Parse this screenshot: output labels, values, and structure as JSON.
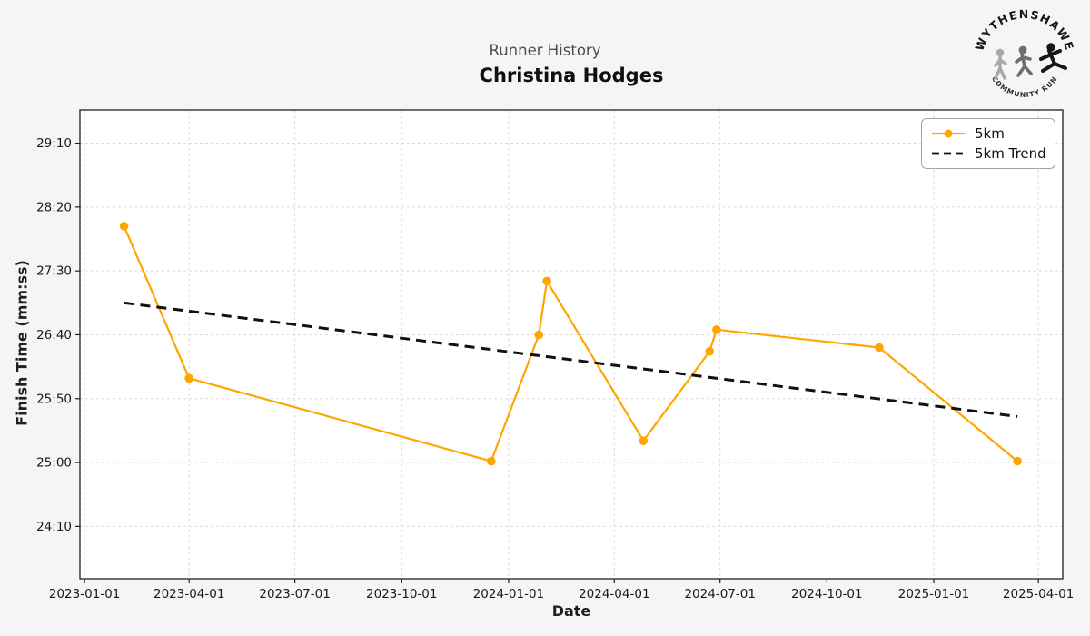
{
  "header": {
    "subtitle": "Runner History",
    "title": "Christina Hodges"
  },
  "logo": {
    "top_text": "WYTHENSHAWE",
    "bottom_text": "COMMUNITY RUN"
  },
  "legend": {
    "position": "upper right"
  },
  "colors": {
    "accent": "#FFA500",
    "trend": "#111111",
    "figure_bg": "#f5f5f5",
    "plot_bg": "#ffffff",
    "grid": "#dbdbdb",
    "spine": "#1f1f1f"
  },
  "chart_data": {
    "type": "line",
    "title": "Christina Hodges",
    "subtitle": "Runner History",
    "xlabel": "Date",
    "ylabel": "Finish Time (mm:ss)",
    "grid": true,
    "legend_position": "upper right",
    "x_ticks": [
      "2023-01-01",
      "2023-04-01",
      "2023-07-01",
      "2023-10-01",
      "2024-01-01",
      "2024-04-01",
      "2024-07-01",
      "2024-10-01",
      "2025-01-01",
      "2025-04-01"
    ],
    "y_ticks": [
      "29:10",
      "28:20",
      "27:30",
      "26:40",
      "25:50",
      "25:00",
      "24:10"
    ],
    "x_range": [
      "2022-12-28",
      "2025-04-22"
    ],
    "y_range": [
      "23:29",
      "29:36"
    ],
    "series": [
      {
        "name": "5km",
        "color": "#FFA500",
        "style": "solid",
        "marker": "circle",
        "points": [
          [
            "2023-02-04",
            "28:05"
          ],
          [
            "2023-04-01",
            "26:06"
          ],
          [
            "2023-12-17",
            "25:01"
          ],
          [
            "2024-01-27",
            "26:40"
          ],
          [
            "2024-02-03",
            "27:22"
          ],
          [
            "2024-04-26",
            "25:17"
          ],
          [
            "2024-06-22",
            "26:27"
          ],
          [
            "2024-06-28",
            "26:44"
          ],
          [
            "2024-11-15",
            "26:30"
          ],
          [
            "2025-03-14",
            "25:01"
          ]
        ]
      },
      {
        "name": "5km Trend",
        "color": "#111111",
        "style": "dashed",
        "marker": "none",
        "points": [
          [
            "2023-02-04",
            "27:05"
          ],
          [
            "2025-03-14",
            "25:36"
          ]
        ]
      }
    ]
  }
}
